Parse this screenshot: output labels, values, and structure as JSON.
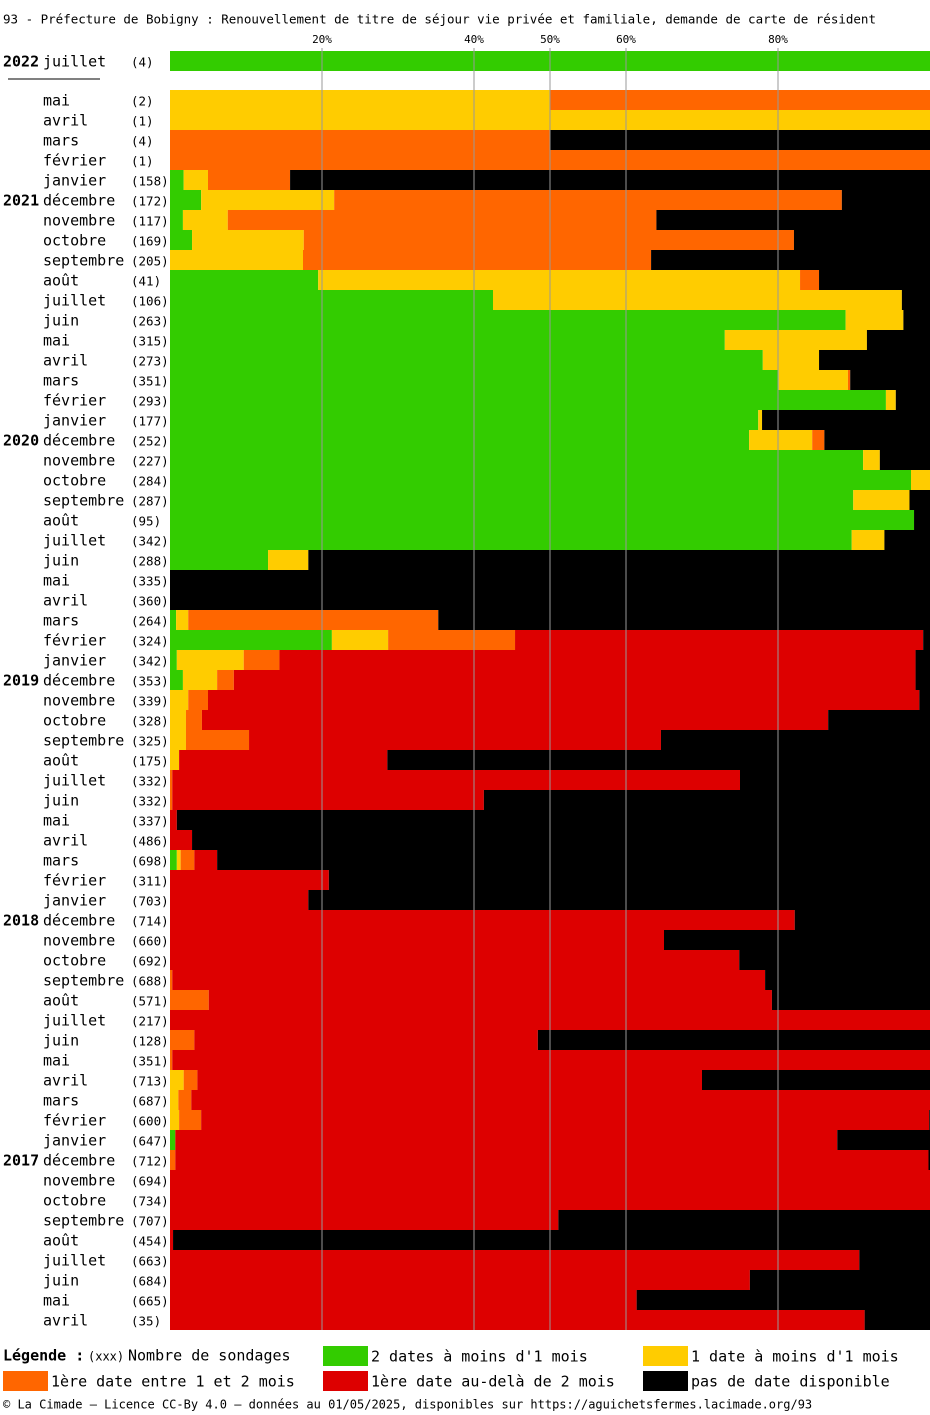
{
  "chart_data": {
    "type": "stacked-bar-horizontal",
    "title": "93 - Préfecture de Bobigny : Renouvellement de titre de séjour vie privée et familiale, demande de carte de résident",
    "categories": [
      "juillet",
      "mai",
      "avril",
      "mars",
      "février",
      "janvier",
      "décembre",
      "novembre",
      "octobre",
      "septembre",
      "août",
      "juillet",
      "juin",
      "mai",
      "avril",
      "mars",
      "février",
      "janvier",
      "décembre",
      "novembre",
      "octobre",
      "septembre",
      "août",
      "juillet",
      "juin",
      "mai",
      "avril",
      "mars",
      "février",
      "janvier",
      "décembre",
      "novembre",
      "octobre",
      "septembre",
      "août",
      "juillet",
      "juin",
      "mai",
      "avril",
      "mars",
      "février",
      "janvier",
      "décembre",
      "novembre",
      "octobre",
      "septembre",
      "août",
      "juillet",
      "juin",
      "mai",
      "avril",
      "mars",
      "février",
      "janvier",
      "décembre",
      "novembre",
      "octobre",
      "septembre",
      "août",
      "juillet",
      "juin",
      "mai",
      "avril"
    ],
    "year_labels": [
      "2022",
      null,
      null,
      null,
      null,
      null,
      "2021",
      null,
      null,
      null,
      null,
      null,
      null,
      null,
      null,
      null,
      null,
      null,
      "2020",
      null,
      null,
      null,
      null,
      null,
      null,
      null,
      null,
      null,
      null,
      null,
      "2019",
      null,
      null,
      null,
      null,
      null,
      null,
      null,
      null,
      null,
      null,
      null,
      "2018",
      null,
      null,
      null,
      null,
      null,
      null,
      null,
      null,
      null,
      null,
      null,
      "2017",
      null,
      null,
      null,
      null,
      null,
      null,
      null,
      null
    ],
    "count_labels": [
      "(4)",
      "(2)",
      "(1)",
      "(4)",
      "(1)",
      "(158)",
      "(172)",
      "(117)",
      "(169)",
      "(205)",
      "(41)",
      "(106)",
      "(263)",
      "(315)",
      "(273)",
      "(351)",
      "(293)",
      "(177)",
      "(252)",
      "(227)",
      "(284)",
      "(287)",
      "(95)",
      "(342)",
      "(288)",
      "(335)",
      "(360)",
      "(264)",
      "(324)",
      "(342)",
      "(353)",
      "(339)",
      "(328)",
      "(325)",
      "(175)",
      "(332)",
      "(332)",
      "(337)",
      "(486)",
      "(698)",
      "(311)",
      "(703)",
      "(714)",
      "(660)",
      "(692)",
      "(688)",
      "(571)",
      "(217)",
      "(128)",
      "(351)",
      "(713)",
      "(687)",
      "(600)",
      "(647)",
      "(712)",
      "(694)",
      "(734)",
      "(707)",
      "(454)",
      "(663)",
      "(684)",
      "(665)",
      "(35)"
    ],
    "series": [
      {
        "name": "2 dates à moins d'1 mois",
        "color": "#33cc00",
        "values": [
          100,
          0,
          0,
          0,
          0,
          1.8,
          4.1,
          1.7,
          2.9,
          0,
          19.5,
          42.5,
          88.9,
          73,
          78,
          80.1,
          94.2,
          77.4,
          76.2,
          91.2,
          97.5,
          89.9,
          97.9,
          89.7,
          12.9,
          0,
          0,
          0.8,
          21.3,
          0.9,
          1.7,
          0,
          0,
          0,
          0,
          0,
          0,
          0,
          0,
          0.9,
          0,
          0,
          0,
          0,
          0,
          0,
          0,
          0,
          0,
          0,
          0,
          0,
          0,
          0.7,
          0,
          0,
          0,
          0,
          0,
          0,
          0,
          0,
          0
        ]
      },
      {
        "name": "1 date à moins d'1 mois",
        "color": "#ffcc00",
        "values": [
          0,
          50,
          100,
          0,
          0,
          3.2,
          17.5,
          5.9,
          14.7,
          17.5,
          63.4,
          53.8,
          7.6,
          18.7,
          7.4,
          9.1,
          1.3,
          0.5,
          8.3,
          2.2,
          2.5,
          7.4,
          0,
          4.3,
          5.3,
          0,
          0,
          1.6,
          7.4,
          8.8,
          4.5,
          2.4,
          2.1,
          2.1,
          1.2,
          0,
          0,
          0,
          0,
          0.5,
          0,
          0,
          0,
          0,
          0,
          0,
          0,
          0,
          0,
          0,
          1.8,
          1.1,
          1.2,
          0,
          0,
          0,
          0,
          0,
          0,
          0,
          0,
          0,
          0
        ]
      },
      {
        "name": "1ère date entre 1 et 2 mois",
        "color": "#ff6600",
        "values": [
          0,
          50,
          0,
          50,
          100,
          10.8,
          66.8,
          56.4,
          64.5,
          45.8,
          2.5,
          0,
          0,
          0,
          0,
          0.3,
          0,
          0,
          1.6,
          0,
          0,
          0,
          0,
          0,
          0,
          0,
          0,
          32.9,
          16.7,
          4.7,
          2.2,
          2.6,
          2.1,
          8.3,
          0,
          0.3,
          0.3,
          0,
          0,
          1.8,
          0,
          0,
          0,
          0,
          0,
          0.3,
          5.1,
          0,
          3.2,
          0.3,
          1.8,
          1.7,
          2.9,
          0,
          0.7,
          0,
          0,
          0,
          0,
          0,
          0,
          0,
          0
        ]
      },
      {
        "name": "1ère date au-delà de 2 mois",
        "color": "#dd0000",
        "values": [
          0,
          0,
          0,
          0,
          0,
          0,
          0,
          0,
          0,
          0,
          0,
          0,
          0,
          0,
          0,
          0,
          0,
          0,
          0,
          0,
          0,
          0,
          0,
          0,
          0,
          0,
          0,
          0,
          53.7,
          83.7,
          89.7,
          93.6,
          82.4,
          54.2,
          27.4,
          74.7,
          41,
          0.9,
          2.9,
          3,
          20.9,
          18.2,
          82.2,
          65,
          74.9,
          78,
          74.1,
          100,
          45.2,
          99.7,
          66.4,
          97.2,
          95.8,
          87.1,
          99.1,
          100,
          100,
          51.1,
          0.4,
          90.7,
          76.3,
          61.4,
          91.4
        ]
      },
      {
        "name": "pas de date disponible",
        "color": "#000000",
        "values": [
          0,
          0,
          0,
          50,
          0,
          84.2,
          11.6,
          36,
          17.9,
          36.7,
          14.6,
          3.7,
          3.5,
          8.3,
          14.6,
          10.5,
          4.5,
          22.1,
          13.9,
          6.6,
          0,
          2.7,
          2.1,
          6,
          81.8,
          100,
          100,
          64.7,
          0.9,
          1.9,
          1.9,
          1.4,
          13.4,
          35.4,
          71.4,
          25,
          58.7,
          99.1,
          97.1,
          93.8,
          79.1,
          81.8,
          17.8,
          35,
          25.1,
          21.7,
          20.8,
          0,
          51.6,
          0,
          30,
          0,
          0.1,
          12.2,
          0.2,
          0,
          0,
          48.9,
          99.6,
          9.3,
          23.7,
          38.6,
          8.6
        ]
      }
    ],
    "xlim": [
      0,
      100
    ],
    "xticks": [
      {
        "value": 20,
        "label": "20%"
      },
      {
        "value": 40,
        "label": "40%"
      },
      {
        "value": 50,
        "label": "50%"
      },
      {
        "value": 60,
        "label": "60%"
      },
      {
        "value": 80,
        "label": "80%"
      }
    ],
    "grid": true,
    "legend_title": "Légende :",
    "legend_count_marker": "(xxx)",
    "legend_count_text": "Nombre de sondages",
    "footer": "© La Cimade — Licence CC-By 4.0 — données au 01/05/2025, disponibles sur https://aguichetsfermes.lacimade.org/93"
  }
}
